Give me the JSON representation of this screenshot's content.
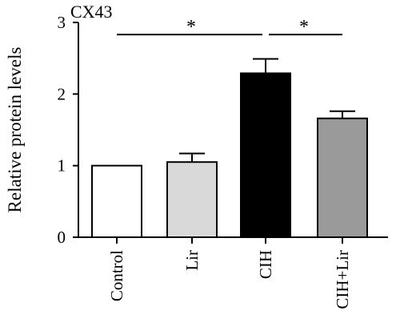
{
  "chart_data": {
    "type": "bar",
    "title": "CX43",
    "xlabel": "",
    "ylabel": "Relative protein levels",
    "ylim": [
      0,
      3
    ],
    "yticks": [
      0,
      1,
      2,
      3
    ],
    "categories": [
      "Control",
      "Lir",
      "CIH",
      "CIH+Lir"
    ],
    "values": [
      1.0,
      1.05,
      2.29,
      1.66
    ],
    "errors": [
      0,
      0.12,
      0.2,
      0.1
    ],
    "colors": [
      "#ffffff",
      "#d9d9d9",
      "#000000",
      "#9a9a9a"
    ],
    "grid": false,
    "significance": [
      {
        "from": "Control",
        "to": "CIH",
        "label": "*"
      },
      {
        "from": "CIH",
        "to": "CIH+Lir",
        "label": "*"
      }
    ]
  }
}
